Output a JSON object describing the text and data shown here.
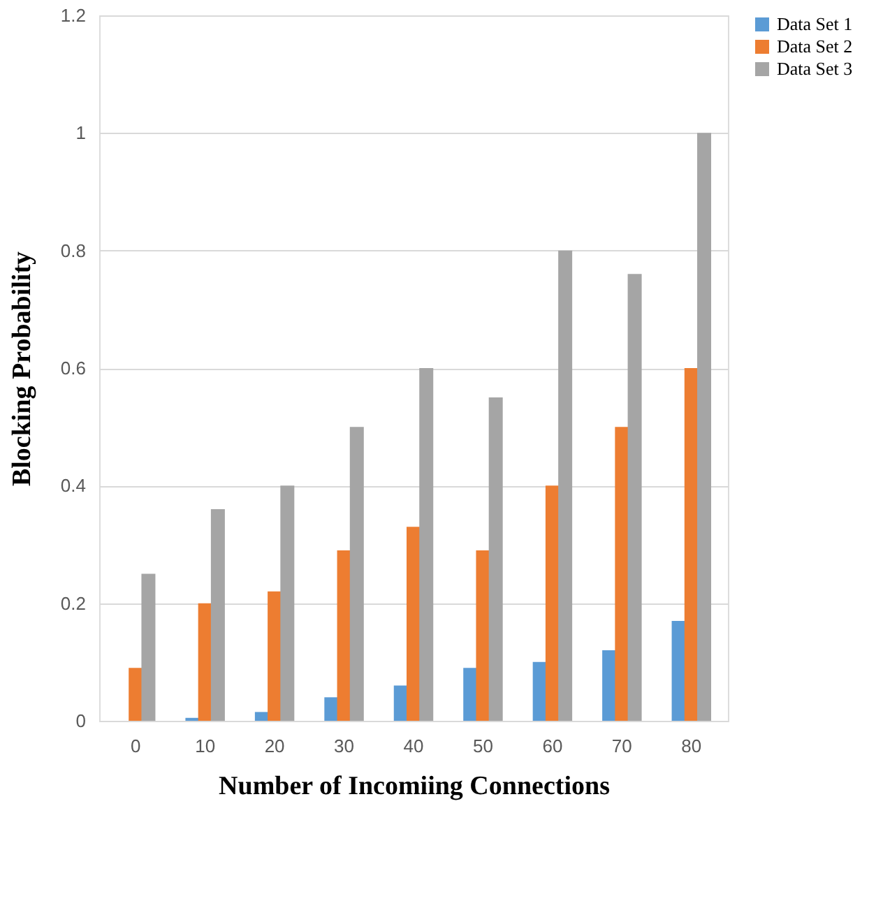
{
  "chart_data": {
    "type": "bar",
    "xlabel": "Number of Incomiing Connections",
    "ylabel": "Blocking Probability",
    "categories": [
      "0",
      "10",
      "20",
      "30",
      "40",
      "50",
      "60",
      "70",
      "80"
    ],
    "series": [
      {
        "name": "Data Set 1",
        "color": "#5b9bd5",
        "values": [
          0,
          0.005,
          0.015,
          0.04,
          0.06,
          0.09,
          0.1,
          0.12,
          0.17
        ]
      },
      {
        "name": "Data Set 2",
        "color": "#ed7d31",
        "values": [
          0.09,
          0.2,
          0.22,
          0.29,
          0.33,
          0.29,
          0.4,
          0.5,
          0.6
        ]
      },
      {
        "name": "Data Set 3",
        "color": "#a5a5a5",
        "values": [
          0.25,
          0.36,
          0.4,
          0.5,
          0.6,
          0.55,
          0.8,
          0.76,
          1.0
        ]
      }
    ],
    "ylim": [
      0,
      1.2
    ],
    "yticks": [
      0,
      0.2,
      0.4,
      0.6,
      0.8,
      1,
      1.2
    ],
    "grid": "y",
    "legend": "right"
  }
}
